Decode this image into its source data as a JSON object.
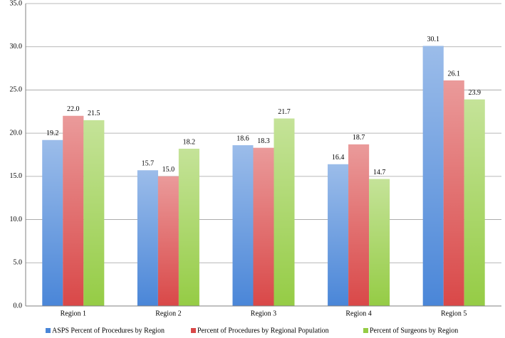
{
  "chart_data": {
    "type": "bar",
    "categories": [
      "Region 1",
      "Region 2",
      "Region 3",
      "Region 4",
      "Region 5"
    ],
    "series": [
      {
        "name": "ASPS Percent of Procedures by Region",
        "color": "#4a86d8",
        "values": [
          19.2,
          15.7,
          18.6,
          16.4,
          30.1
        ],
        "value_labels": [
          "19.2",
          "15.7",
          "18.6",
          "16.4",
          "30.1"
        ]
      },
      {
        "name": "Percent of Procedures by Regional Population",
        "color": "#d94848",
        "values": [
          22.0,
          15.0,
          18.3,
          18.7,
          26.1
        ],
        "value_labels": [
          "22.0",
          "15.0",
          "18.3",
          "18.7",
          "26.1"
        ]
      },
      {
        "name": "Percent of Surgeons by Region",
        "color": "#95cc45",
        "values": [
          21.5,
          18.2,
          21.7,
          14.7,
          23.9
        ],
        "value_labels": [
          "21.5",
          "18.2",
          "21.7",
          "14.7",
          "23.9"
        ]
      }
    ],
    "ylim": [
      0,
      35
    ],
    "yticks": [
      {
        "value": 0,
        "label": "0.0"
      },
      {
        "value": 5,
        "label": "5.0"
      },
      {
        "value": 10,
        "label": "10.0"
      },
      {
        "value": 15,
        "label": "15.0"
      },
      {
        "value": 20,
        "label": "20.0"
      },
      {
        "value": 25,
        "label": "25.0"
      },
      {
        "value": 30,
        "label": "30.0"
      },
      {
        "value": 35,
        "label": "35.0"
      }
    ],
    "grid": true,
    "legend": "bottom"
  }
}
